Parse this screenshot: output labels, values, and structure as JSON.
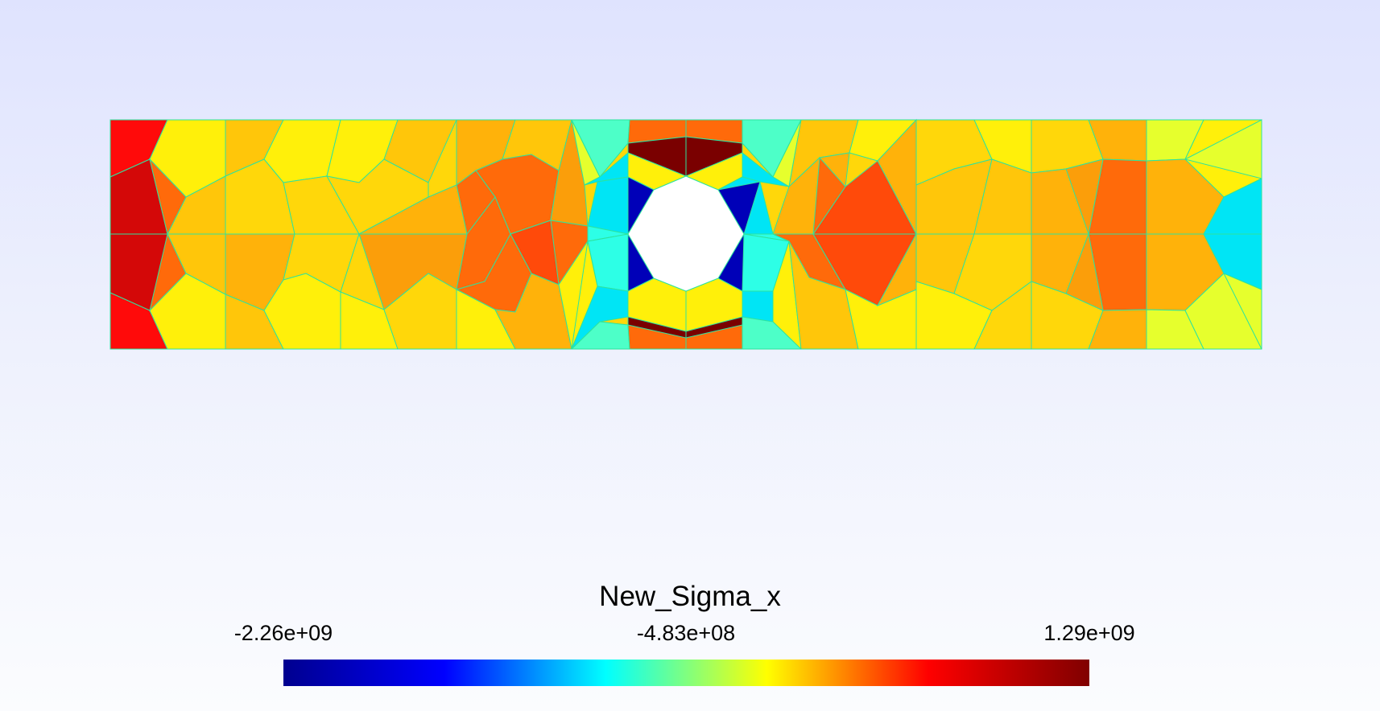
{
  "plot": {
    "title": "New_Sigma_x",
    "colormap": [
      "#00008f",
      "#0000ff",
      "#00ffff",
      "#ffff00",
      "#ff0000",
      "#800000"
    ],
    "mesh_color": "#2de39e",
    "hole_fill": "#ffffff"
  },
  "colorbar": {
    "labels": [
      "-2.26e+09",
      "-4.83e+08",
      "1.29e+09"
    ],
    "min": -2260000000.0,
    "mid": -483000000.0,
    "max": 1290000000.0
  },
  "field_colors": {
    "red": "#ff0a0a",
    "darkred": "#d40808",
    "deepred": "#7a0000",
    "orangered": "#ff4a0a",
    "darkorange": "#ff6a0a",
    "orange": "#fb9e0a",
    "lightorange": "#ffb20a",
    "amber": "#ffc60a",
    "gold": "#ffd70a",
    "yellow": "#fff00a",
    "lime": "#e6ff2d",
    "cyan": "#00e5f5",
    "aqua": "#2dffe6",
    "mint": "#4dffc8",
    "navy": "#0000b8"
  }
}
